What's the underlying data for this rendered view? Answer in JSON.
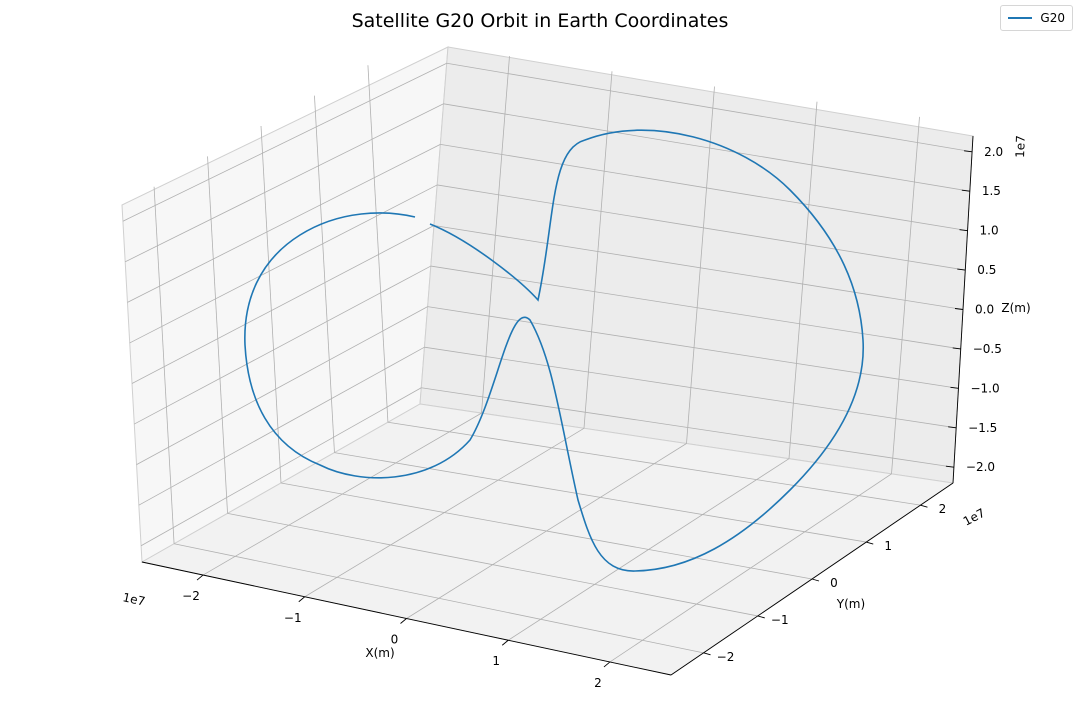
{
  "chart_data": {
    "type": "line",
    "projection": "3d",
    "title": "Satellite G20 Orbit in Earth Coordinates",
    "xlabel": "X(m)",
    "ylabel": "Y(m)",
    "zlabel": "Z(m)",
    "x_offset_label": "1e7",
    "y_offset_label": "1e7",
    "z_offset_label": "1e7",
    "xlim": [
      -2.6,
      2.6
    ],
    "ylim": [
      -2.6,
      2.6
    ],
    "zlim": [
      -2.2,
      2.2
    ],
    "x_ticks": [
      "−2",
      "−1",
      "0",
      "1",
      "2"
    ],
    "x_tick_values": [
      -2,
      -1,
      0,
      1,
      2
    ],
    "y_ticks": [
      "−2",
      "−1",
      "0",
      "1",
      "2"
    ],
    "y_tick_values": [
      -2,
      -1,
      0,
      1,
      2
    ],
    "z_ticks": [
      "−2.0",
      "−1.5",
      "−1.0",
      "−0.5",
      "0.0",
      "0.5",
      "1.0",
      "1.5",
      "2.0"
    ],
    "z_tick_values": [
      -2.0,
      -1.5,
      -1.0,
      -0.5,
      0.0,
      0.5,
      1.0,
      1.5,
      2.0
    ],
    "grid": true,
    "legend_position": "top-right",
    "series": [
      {
        "name": "G20",
        "color": "#1f77b4",
        "note_units": "1e7 m",
        "x": [
          -0.6,
          -1.0,
          -1.4,
          -1.7,
          -2.0,
          -2.15,
          -2.25,
          -2.3,
          -2.25,
          -2.15,
          -1.95,
          -1.65,
          -1.3,
          -0.95,
          -0.6,
          -0.25,
          0.05,
          0.3,
          0.55,
          0.8,
          1.1,
          1.4,
          1.7,
          2.0,
          2.25,
          2.4,
          2.45,
          2.35,
          2.15,
          1.8,
          1.4,
          1.0,
          0.6,
          0.3,
          0.1,
          -0.05,
          -0.2,
          -0.4
        ],
        "y": [
          0.2,
          0.5,
          0.8,
          1.1,
          1.3,
          1.4,
          1.45,
          1.35,
          1.15,
          0.85,
          0.5,
          0.15,
          -0.2,
          -0.5,
          -0.7,
          -0.8,
          -0.75,
          -0.6,
          -0.45,
          -0.6,
          -0.9,
          -1.2,
          -1.45,
          -1.6,
          -1.6,
          -1.45,
          -1.15,
          -0.75,
          -0.3,
          0.1,
          0.5,
          0.8,
          1.0,
          0.95,
          0.7,
          0.35,
          0.1,
          0.0
        ],
        "z": [
          0.3,
          0.55,
          0.75,
          0.8,
          0.7,
          0.5,
          0.2,
          -0.15,
          -0.5,
          -0.8,
          -1.0,
          -1.05,
          -0.95,
          -0.75,
          -0.5,
          -0.3,
          -0.1,
          0.2,
          0.7,
          1.3,
          1.75,
          2.0,
          2.05,
          1.9,
          1.5,
          0.9,
          0.2,
          -0.5,
          -1.1,
          -1.6,
          -1.95,
          -2.1,
          -2.05,
          -1.7,
          -1.1,
          -0.4,
          0.05,
          0.25
        ]
      }
    ]
  }
}
